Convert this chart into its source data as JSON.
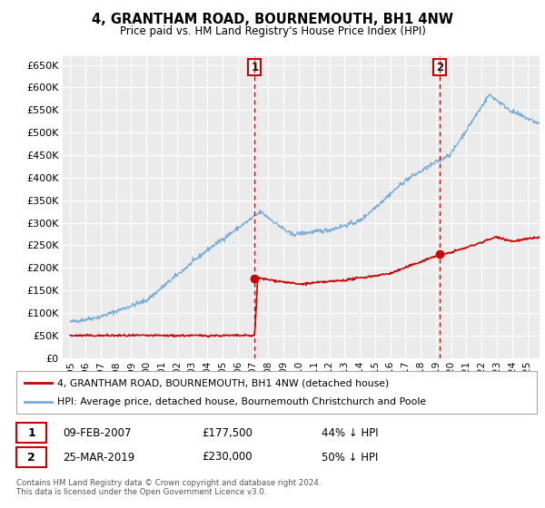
{
  "title": "4, GRANTHAM ROAD, BOURNEMOUTH, BH1 4NW",
  "subtitle": "Price paid vs. HM Land Registry's House Price Index (HPI)",
  "ylim": [
    0,
    670000
  ],
  "yticks": [
    0,
    50000,
    100000,
    150000,
    200000,
    250000,
    300000,
    350000,
    400000,
    450000,
    500000,
    550000,
    600000,
    650000
  ],
  "xlim_start": 1994.5,
  "xlim_end": 2025.8,
  "sale1_x": 2007.1,
  "sale1_y": 177500,
  "sale1_label": "1",
  "sale1_date": "09-FEB-2007",
  "sale1_price": "£177,500",
  "sale1_hpi": "44% ↓ HPI",
  "sale2_x": 2019.23,
  "sale2_y": 230000,
  "sale2_label": "2",
  "sale2_date": "25-MAR-2019",
  "sale2_price": "£230,000",
  "sale2_hpi": "50% ↓ HPI",
  "line_color_property": "#cc0000",
  "line_color_hpi": "#7aaed6",
  "background_chart": "#ebebeb",
  "background_fig": "#ffffff",
  "grid_color": "#ffffff",
  "legend_label_property": "4, GRANTHAM ROAD, BOURNEMOUTH, BH1 4NW (detached house)",
  "legend_label_hpi": "HPI: Average price, detached house, Bournemouth Christchurch and Poole",
  "footnote": "Contains HM Land Registry data © Crown copyright and database right 2024.\nThis data is licensed under the Open Government Licence v3.0.",
  "marker_color": "#cc0000",
  "vline_color": "#cc0000"
}
